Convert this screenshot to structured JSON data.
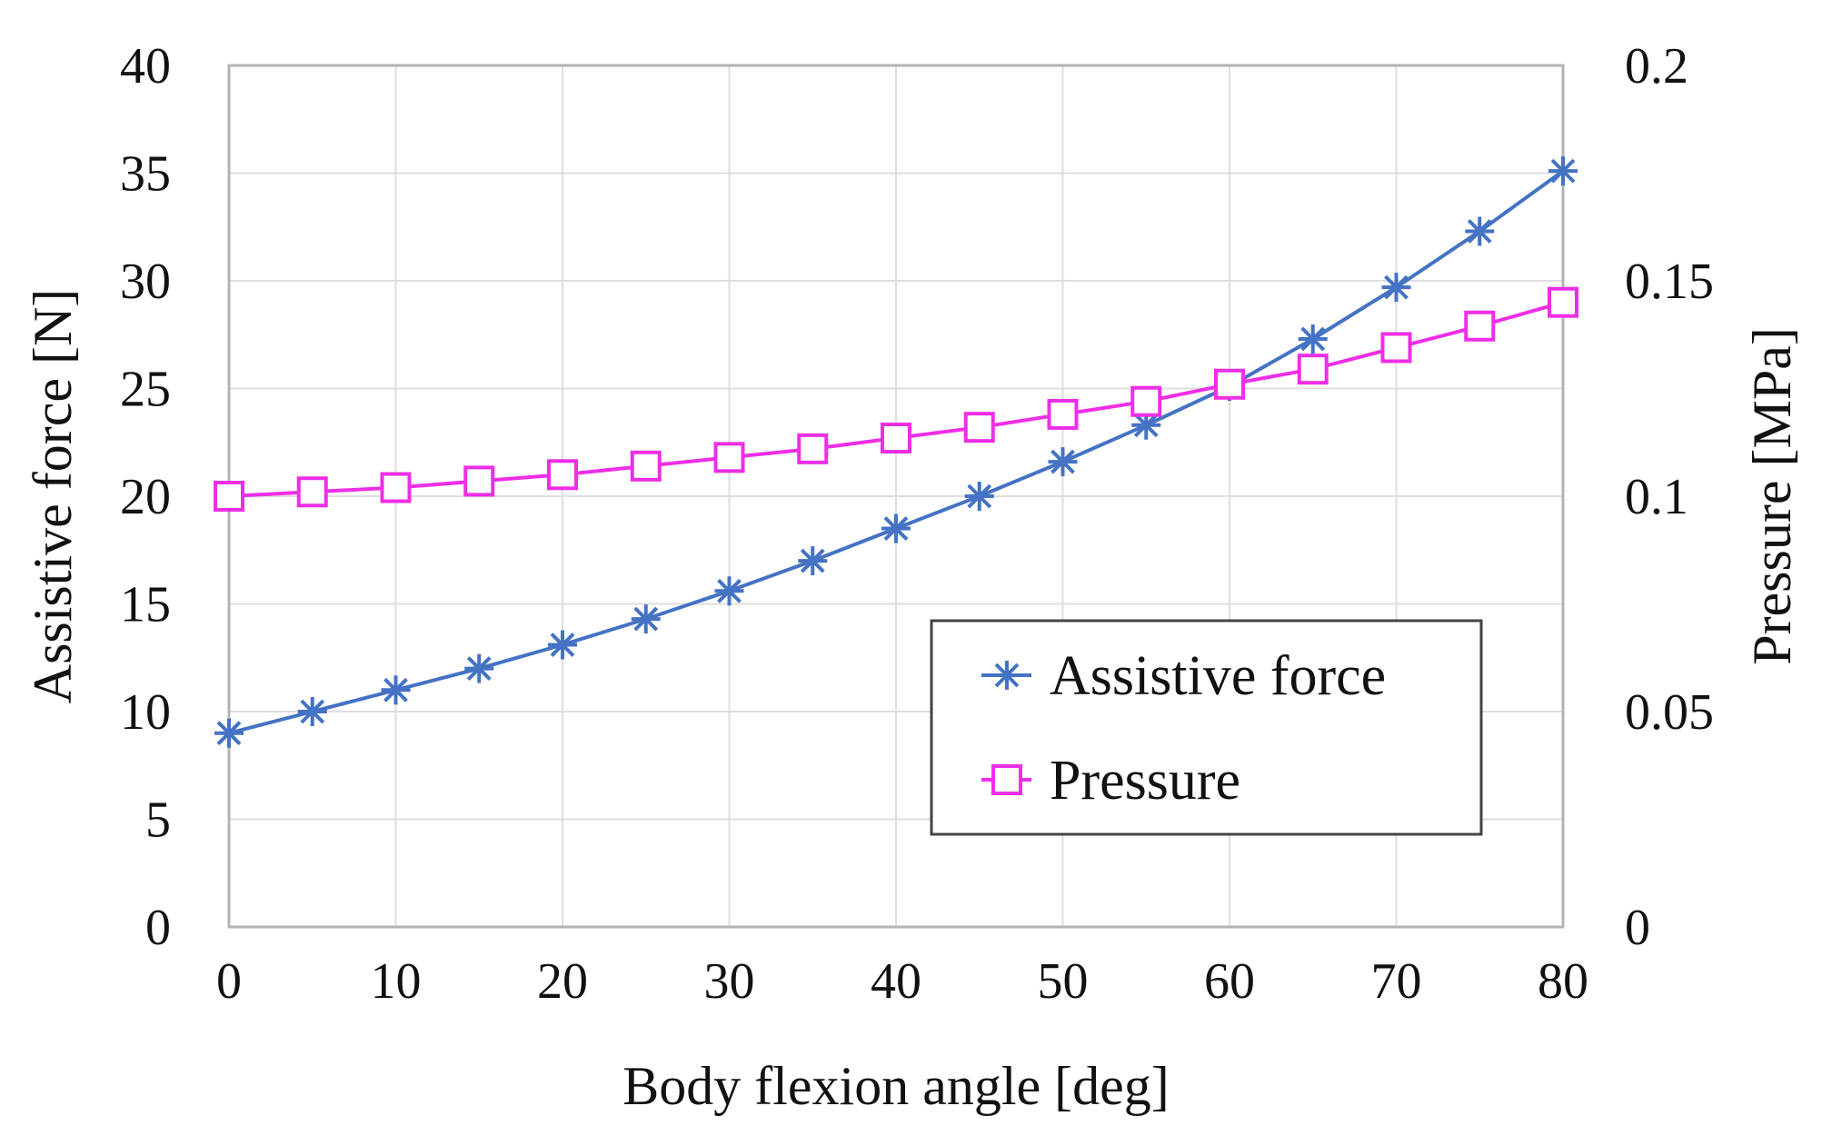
{
  "chart_data": {
    "type": "line",
    "xlabel": "Body flexion angle [deg]",
    "ylabel": "Assistive force [N]",
    "y2label": "Pressure [MPa]",
    "x": [
      0,
      5,
      10,
      15,
      20,
      25,
      30,
      35,
      40,
      45,
      50,
      55,
      60,
      65,
      70,
      75,
      80
    ],
    "xlim": [
      0,
      80
    ],
    "ylim": [
      0,
      40
    ],
    "y2lim": [
      0,
      0.2
    ],
    "xticks": [
      "0",
      "10",
      "20",
      "30",
      "40",
      "50",
      "60",
      "70",
      "80"
    ],
    "yticks": [
      "0",
      "5",
      "10",
      "15",
      "20",
      "25",
      "30",
      "35",
      "40"
    ],
    "y2ticks": [
      "0",
      "0.05",
      "0.1",
      "0.15",
      "0.2"
    ],
    "grid": true,
    "legend_position": "lower-right",
    "series": [
      {
        "name": "Assistive force",
        "axis": "left",
        "marker": "asterisk",
        "color": "#4472C4",
        "values": [
          9.0,
          10.0,
          11.0,
          12.0,
          13.1,
          14.3,
          15.6,
          17.0,
          18.5,
          20.0,
          21.6,
          23.3,
          25.1,
          27.3,
          29.7,
          32.3,
          35.1
        ]
      },
      {
        "name": "Pressure",
        "axis": "right",
        "marker": "square",
        "color": "#EE2EE6",
        "values": [
          0.1,
          0.101,
          0.102,
          0.1035,
          0.105,
          0.107,
          0.109,
          0.111,
          0.1135,
          0.116,
          0.119,
          0.122,
          0.126,
          0.1295,
          0.1345,
          0.1395,
          0.145
        ]
      }
    ]
  }
}
